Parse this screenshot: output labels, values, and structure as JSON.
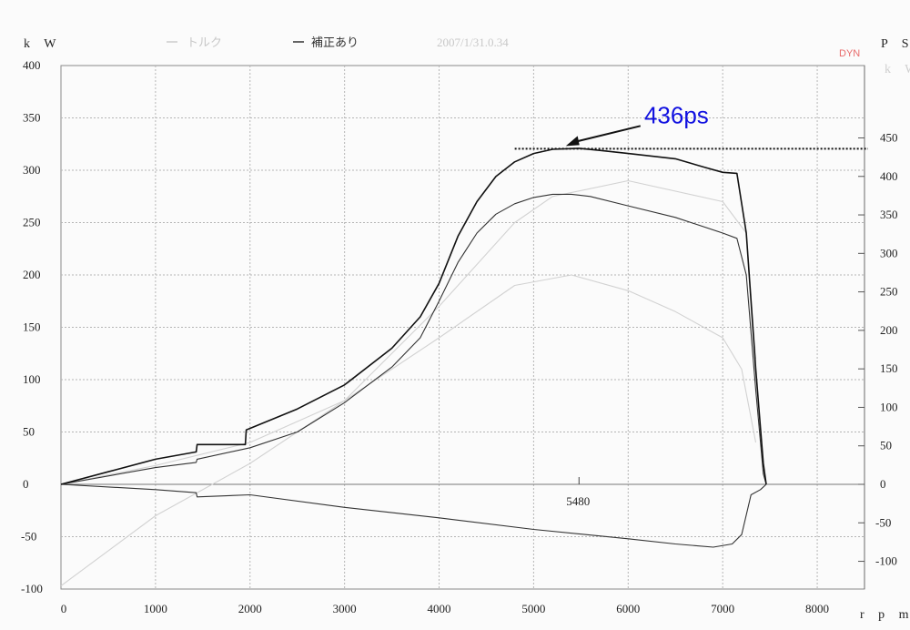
{
  "chart_data": {
    "type": "line",
    "x_unit": "r p m",
    "y_left_unit": "k W",
    "y_right_unit": "P S",
    "x_ticks": [
      0,
      1000,
      2000,
      3000,
      4000,
      5000,
      6000,
      7000,
      8000
    ],
    "xlim": [
      0,
      8500
    ],
    "y_left_ticks": [
      400,
      350,
      300,
      250,
      200,
      150,
      100,
      50,
      0,
      -50,
      -100
    ],
    "ylim_left": [
      -100,
      400
    ],
    "y_right_ticks": [
      450,
      400,
      350,
      300,
      250,
      200,
      150,
      100,
      50,
      0,
      -50,
      -100
    ],
    "ylim_right": [
      -136,
      544
    ],
    "grid": true,
    "legend": [
      {
        "label": "トルク",
        "faint": true
      },
      {
        "label": "補正あり",
        "faint": false
      },
      {
        "label": "2007/1/31.0.34",
        "faint": true
      }
    ],
    "stamp": "DYN",
    "annotation": {
      "text": "436ps",
      "rpm": 5480,
      "ps": 436
    },
    "peak_marker_label": "5480",
    "series": [
      {
        "name": "補正あり",
        "color": "#111111",
        "x": [
          0,
          500,
          1000,
          1430,
          1440,
          1950,
          1960,
          2500,
          3000,
          3500,
          3800,
          4000,
          4200,
          4400,
          4600,
          4800,
          5000,
          5200,
          5480,
          5700,
          6000,
          6500,
          6800,
          7000,
          7150,
          7250,
          7350,
          7430,
          7460
        ],
        "y": [
          0,
          12,
          24,
          31,
          38,
          38,
          52,
          72,
          95,
          130,
          160,
          192,
          237,
          270,
          294,
          308,
          316,
          320,
          321,
          319,
          316,
          311,
          303,
          298,
          297,
          240,
          110,
          20,
          0
        ]
      },
      {
        "name": "",
        "color": "#333333",
        "x": [
          0,
          500,
          1000,
          1430,
          1440,
          1950,
          2000,
          2500,
          3000,
          3500,
          3800,
          4000,
          4200,
          4400,
          4600,
          4800,
          5000,
          5200,
          5400,
          5600,
          6000,
          6500,
          7000,
          7150,
          7250,
          7350,
          7430,
          7460
        ],
        "y": [
          0,
          8,
          16,
          21,
          24,
          34,
          35,
          50,
          78,
          112,
          140,
          175,
          212,
          240,
          258,
          268,
          274,
          277,
          277,
          275,
          266,
          255,
          240,
          235,
          200,
          90,
          10,
          0
        ]
      },
      {
        "name": "",
        "color": "#333333",
        "x": [
          0,
          1000,
          1430,
          1440,
          2000,
          3000,
          4000,
          5000,
          6000,
          6500,
          6900,
          7100,
          7200,
          7300,
          7400,
          7460
        ],
        "y": [
          0,
          -5,
          -8,
          -12,
          -10,
          -22,
          -32,
          -43,
          -52,
          -57,
          -60,
          -57,
          -48,
          -10,
          -5,
          0
        ]
      },
      {
        "name": "",
        "color": "#d2d2d2",
        "x": [
          0,
          1000,
          2000,
          3000,
          4000,
          4800,
          5400,
          6000,
          6500,
          7000,
          7200,
          7350
        ],
        "y": [
          -97,
          -30,
          20,
          80,
          140,
          190,
          200,
          185,
          165,
          140,
          110,
          40
        ]
      },
      {
        "name": "",
        "color": "#d2d2d2",
        "x": [
          0,
          1000,
          2000,
          3000,
          4000,
          4800,
          5200,
          6000,
          7000,
          7250,
          7350
        ],
        "y": [
          0,
          18,
          40,
          80,
          170,
          250,
          275,
          290,
          270,
          240,
          120
        ]
      }
    ]
  }
}
